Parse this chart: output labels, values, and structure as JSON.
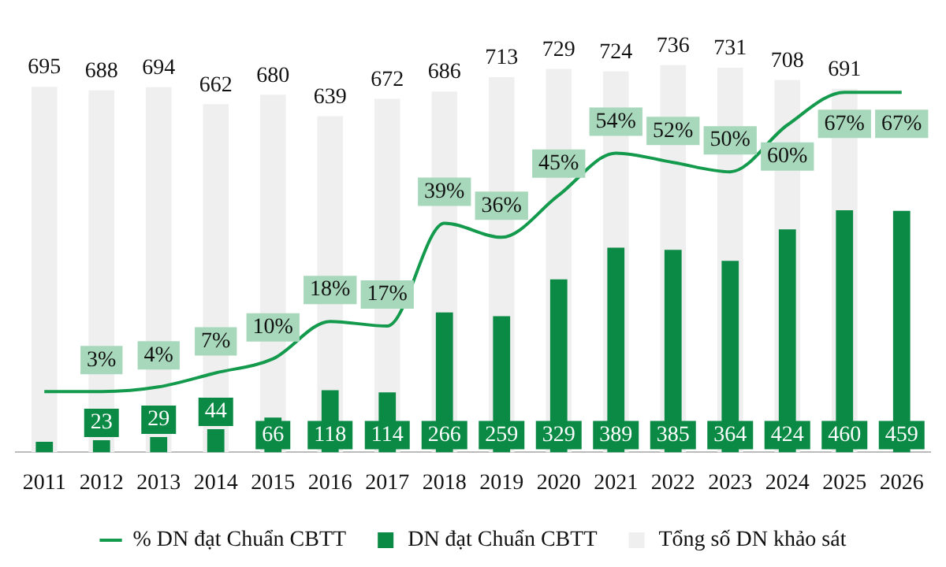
{
  "chart_data": {
    "type": "bar",
    "categories": [
      "2011",
      "2012",
      "2013",
      "2014",
      "2015",
      "2016",
      "2017",
      "2018",
      "2019",
      "2020",
      "2021",
      "2022",
      "2023",
      "2024",
      "2025",
      "2026"
    ],
    "series": [
      {
        "name": "DN đạt Chuẩn CBTT",
        "color": "#0b8a45",
        "values": [
          20,
          23,
          29,
          44,
          66,
          118,
          114,
          266,
          259,
          329,
          389,
          385,
          364,
          424,
          460,
          459
        ],
        "value_labels": [
          null,
          "23",
          "29",
          "44",
          "66",
          "118",
          "114",
          "266",
          "259",
          "329",
          "389",
          "385",
          "364",
          "424",
          "460",
          "459"
        ]
      },
      {
        "name": "Tổng số DN khảo sát",
        "color": "#efefef",
        "values": [
          695,
          688,
          694,
          662,
          680,
          639,
          672,
          686,
          713,
          729,
          724,
          736,
          731,
          708,
          691,
          null
        ],
        "value_labels": [
          "695",
          "688",
          "694",
          "662",
          "680",
          "639",
          "672",
          "686",
          "713",
          "729",
          "724",
          "736",
          "731",
          "708",
          "691",
          null
        ]
      },
      {
        "name": "% DN đạt Chuẩn CBTT",
        "type": "line",
        "axis": "y2",
        "color": "#139a4c",
        "values": [
          3,
          3,
          4,
          7,
          10,
          18,
          17,
          39,
          36,
          45,
          54,
          52,
          50,
          60,
          67,
          67
        ],
        "value_labels": [
          null,
          "3%",
          "4%",
          "7%",
          "10%",
          "18%",
          "17%",
          "39%",
          "36%",
          "45%",
          "54%",
          "52%",
          "50%",
          "60%",
          "67%",
          "67%"
        ]
      }
    ],
    "tick_labels": "x",
    "grid": false,
    "legend": "bottom",
    "marker": "none",
    "line_style": "solid"
  }
}
